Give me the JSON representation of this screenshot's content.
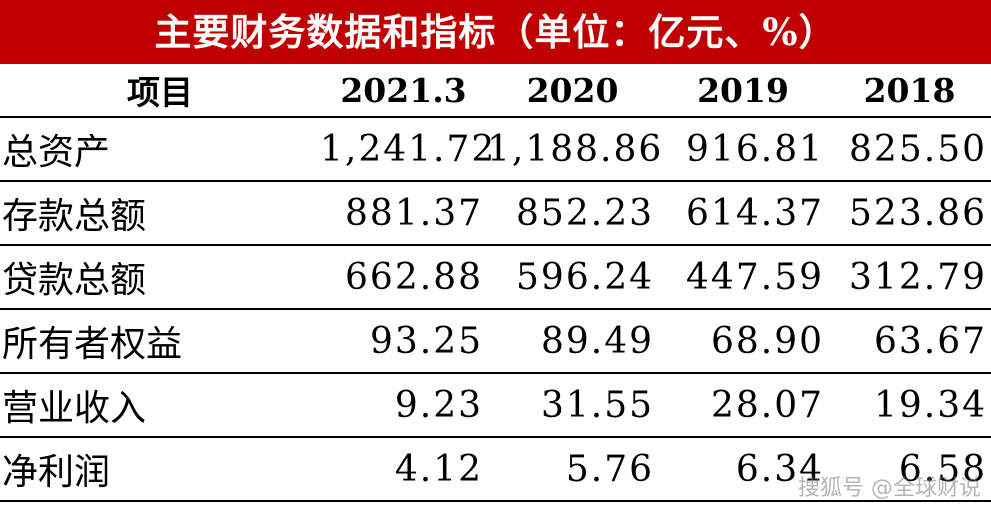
{
  "title": "主要财务数据和指标（单位：亿元、%）",
  "header": {
    "item": "项目",
    "years": [
      "2021.3",
      "2020",
      "2019",
      "2018"
    ]
  },
  "rows": [
    {
      "label": "总资产",
      "values": [
        "1,241.72",
        "1,188.86",
        "916.81",
        "825.50"
      ]
    },
    {
      "label": "存款总额",
      "values": [
        "881.37",
        "852.23",
        "614.37",
        "523.86"
      ]
    },
    {
      "label": "贷款总额",
      "values": [
        "662.88",
        "596.24",
        "447.59",
        "312.79"
      ]
    },
    {
      "label": "所有者权益",
      "values": [
        "93.25",
        "89.49",
        "68.90",
        "63.67"
      ]
    },
    {
      "label": "营业收入",
      "values": [
        "9.23",
        "31.55",
        "28.07",
        "19.34"
      ]
    },
    {
      "label": "净利润",
      "values": [
        "4.12",
        "5.76",
        "6.34",
        "6.58"
      ]
    }
  ],
  "watermark": "搜狐号 @全球财说",
  "colors": {
    "title_background": "#c00000",
    "title_text": "#ffffff",
    "rule": "#000000"
  }
}
